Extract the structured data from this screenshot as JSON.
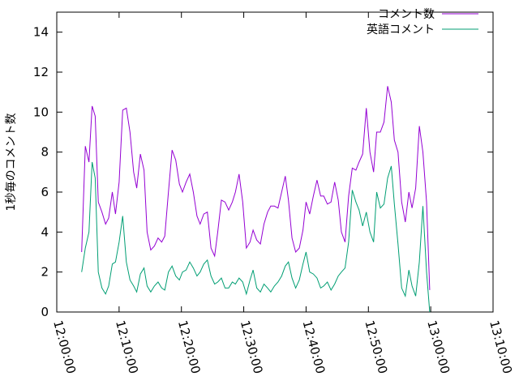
{
  "chart_data": {
    "type": "line",
    "title": "",
    "xlabel": "",
    "ylabel": "1秒毎のコメント数",
    "ylim": [
      0,
      15
    ],
    "yticks": [
      0,
      2,
      4,
      6,
      8,
      10,
      12,
      14
    ],
    "xlim": [
      "12:00:00",
      "13:10:00"
    ],
    "xticks": [
      "12:00:00",
      "12:10:00",
      "12:20:00",
      "12:30:00",
      "12:40:00",
      "12:50:00",
      "13:00:00",
      "13:10:00"
    ],
    "grid": false,
    "legend_position": "top-right",
    "series": [
      {
        "name": "コメント数",
        "color": "#9400d3",
        "points": [
          [
            "12:04:00",
            3.0
          ],
          [
            "12:04:35",
            8.3
          ],
          [
            "12:05:10",
            7.5
          ],
          [
            "12:05:40",
            10.3
          ],
          [
            "12:06:10",
            9.8
          ],
          [
            "12:06:40",
            5.5
          ],
          [
            "12:07:15",
            5.0
          ],
          [
            "12:07:50",
            4.4
          ],
          [
            "12:08:20",
            4.7
          ],
          [
            "12:08:55",
            6.0
          ],
          [
            "12:09:25",
            4.9
          ],
          [
            "12:10:00",
            6.5
          ],
          [
            "12:10:35",
            10.1
          ],
          [
            "12:11:10",
            10.2
          ],
          [
            "12:11:45",
            9.0
          ],
          [
            "12:12:20",
            7.0
          ],
          [
            "12:12:50",
            6.2
          ],
          [
            "12:13:25",
            7.9
          ],
          [
            "12:14:00",
            7.1
          ],
          [
            "12:14:30",
            4.0
          ],
          [
            "12:15:05",
            3.1
          ],
          [
            "12:15:40",
            3.3
          ],
          [
            "12:16:15",
            3.7
          ],
          [
            "12:16:50",
            3.5
          ],
          [
            "12:17:20",
            3.8
          ],
          [
            "12:17:55",
            6.0
          ],
          [
            "12:18:30",
            8.1
          ],
          [
            "12:19:05",
            7.6
          ],
          [
            "12:19:40",
            6.4
          ],
          [
            "12:20:10",
            6.0
          ],
          [
            "12:20:45",
            6.5
          ],
          [
            "12:21:20",
            6.9
          ],
          [
            "12:21:55",
            6.0
          ],
          [
            "12:22:30",
            4.8
          ],
          [
            "12:23:00",
            4.4
          ],
          [
            "12:23:35",
            4.9
          ],
          [
            "12:24:10",
            5.0
          ],
          [
            "12:24:45",
            3.2
          ],
          [
            "12:25:20",
            2.8
          ],
          [
            "12:25:50",
            4.0
          ],
          [
            "12:26:25",
            5.6
          ],
          [
            "12:27:00",
            5.5
          ],
          [
            "12:27:35",
            5.1
          ],
          [
            "12:28:10",
            5.5
          ],
          [
            "12:28:40",
            6.0
          ],
          [
            "12:29:15",
            6.9
          ],
          [
            "12:29:50",
            5.5
          ],
          [
            "12:30:25",
            3.2
          ],
          [
            "12:31:00",
            3.5
          ],
          [
            "12:31:30",
            4.1
          ],
          [
            "12:32:05",
            3.6
          ],
          [
            "12:32:40",
            3.4
          ],
          [
            "12:33:15",
            4.4
          ],
          [
            "12:33:50",
            5.0
          ],
          [
            "12:34:20",
            5.3
          ],
          [
            "12:34:55",
            5.3
          ],
          [
            "12:35:30",
            5.2
          ],
          [
            "12:36:05",
            6.0
          ],
          [
            "12:36:40",
            6.8
          ],
          [
            "12:37:10",
            5.6
          ],
          [
            "12:37:45",
            3.7
          ],
          [
            "12:38:20",
            3.0
          ],
          [
            "12:38:55",
            3.2
          ],
          [
            "12:39:30",
            4.1
          ],
          [
            "12:40:00",
            5.5
          ],
          [
            "12:40:35",
            4.9
          ],
          [
            "12:41:10",
            5.8
          ],
          [
            "12:41:45",
            6.6
          ],
          [
            "12:42:20",
            5.8
          ],
          [
            "12:42:50",
            5.8
          ],
          [
            "12:43:25",
            5.4
          ],
          [
            "12:44:00",
            5.5
          ],
          [
            "12:44:35",
            6.5
          ],
          [
            "12:45:10",
            5.6
          ],
          [
            "12:45:40",
            4.0
          ],
          [
            "12:46:15",
            3.5
          ],
          [
            "12:46:50",
            5.8
          ],
          [
            "12:47:25",
            7.2
          ],
          [
            "12:48:00",
            7.1
          ],
          [
            "12:48:30",
            7.5
          ],
          [
            "12:49:05",
            7.9
          ],
          [
            "12:49:40",
            10.2
          ],
          [
            "12:50:15",
            8.0
          ],
          [
            "12:50:50",
            7.0
          ],
          [
            "12:51:20",
            9.0
          ],
          [
            "12:51:55",
            9.0
          ],
          [
            "12:52:30",
            9.5
          ],
          [
            "12:53:05",
            11.3
          ],
          [
            "12:53:40",
            10.5
          ],
          [
            "12:54:10",
            8.6
          ],
          [
            "12:54:45",
            8.0
          ],
          [
            "12:55:20",
            5.5
          ],
          [
            "12:55:55",
            4.5
          ],
          [
            "12:56:30",
            6.0
          ],
          [
            "12:57:00",
            5.2
          ],
          [
            "12:57:35",
            6.2
          ],
          [
            "12:58:10",
            9.3
          ],
          [
            "12:58:45",
            8.0
          ],
          [
            "12:59:20",
            5.5
          ],
          [
            "12:59:50",
            1.1
          ]
        ]
      },
      {
        "name": "英語コメント",
        "color": "#009e73",
        "points": [
          [
            "12:04:00",
            2.0
          ],
          [
            "12:04:35",
            3.2
          ],
          [
            "12:05:10",
            4.0
          ],
          [
            "12:05:40",
            7.5
          ],
          [
            "12:06:10",
            6.7
          ],
          [
            "12:06:40",
            2.0
          ],
          [
            "12:07:15",
            1.2
          ],
          [
            "12:07:50",
            0.9
          ],
          [
            "12:08:20",
            1.3
          ],
          [
            "12:08:55",
            2.4
          ],
          [
            "12:09:25",
            2.5
          ],
          [
            "12:10:00",
            3.5
          ],
          [
            "12:10:35",
            4.8
          ],
          [
            "12:11:10",
            2.5
          ],
          [
            "12:11:45",
            1.6
          ],
          [
            "12:12:20",
            1.3
          ],
          [
            "12:12:50",
            1.0
          ],
          [
            "12:13:25",
            1.9
          ],
          [
            "12:14:00",
            2.2
          ],
          [
            "12:14:30",
            1.3
          ],
          [
            "12:15:05",
            1.0
          ],
          [
            "12:15:40",
            1.3
          ],
          [
            "12:16:15",
            1.5
          ],
          [
            "12:16:50",
            1.2
          ],
          [
            "12:17:20",
            1.1
          ],
          [
            "12:17:55",
            2.0
          ],
          [
            "12:18:30",
            2.3
          ],
          [
            "12:19:05",
            1.8
          ],
          [
            "12:19:40",
            1.6
          ],
          [
            "12:20:10",
            2.0
          ],
          [
            "12:20:45",
            2.1
          ],
          [
            "12:21:20",
            2.5
          ],
          [
            "12:21:55",
            2.2
          ],
          [
            "12:22:30",
            1.8
          ],
          [
            "12:23:00",
            2.0
          ],
          [
            "12:23:35",
            2.4
          ],
          [
            "12:24:10",
            2.6
          ],
          [
            "12:24:45",
            1.8
          ],
          [
            "12:25:20",
            1.4
          ],
          [
            "12:25:50",
            1.5
          ],
          [
            "12:26:25",
            1.7
          ],
          [
            "12:27:00",
            1.2
          ],
          [
            "12:27:35",
            1.2
          ],
          [
            "12:28:10",
            1.5
          ],
          [
            "12:28:40",
            1.4
          ],
          [
            "12:29:15",
            1.7
          ],
          [
            "12:29:50",
            1.5
          ],
          [
            "12:30:25",
            0.9
          ],
          [
            "12:31:00",
            1.6
          ],
          [
            "12:31:30",
            2.1
          ],
          [
            "12:32:05",
            1.2
          ],
          [
            "12:32:40",
            1.0
          ],
          [
            "12:33:15",
            1.4
          ],
          [
            "12:33:50",
            1.2
          ],
          [
            "12:34:20",
            1.0
          ],
          [
            "12:34:55",
            1.3
          ],
          [
            "12:35:30",
            1.5
          ],
          [
            "12:36:05",
            1.8
          ],
          [
            "12:36:40",
            2.3
          ],
          [
            "12:37:10",
            2.5
          ],
          [
            "12:37:45",
            1.7
          ],
          [
            "12:38:20",
            1.2
          ],
          [
            "12:38:55",
            1.6
          ],
          [
            "12:39:30",
            2.4
          ],
          [
            "12:40:00",
            3.0
          ],
          [
            "12:40:35",
            2.0
          ],
          [
            "12:41:10",
            1.9
          ],
          [
            "12:41:45",
            1.7
          ],
          [
            "12:42:20",
            1.2
          ],
          [
            "12:42:50",
            1.3
          ],
          [
            "12:43:25",
            1.5
          ],
          [
            "12:44:00",
            1.1
          ],
          [
            "12:44:35",
            1.4
          ],
          [
            "12:45:10",
            1.8
          ],
          [
            "12:45:40",
            2.0
          ],
          [
            "12:46:15",
            2.2
          ],
          [
            "12:46:50",
            3.5
          ],
          [
            "12:47:25",
            6.1
          ],
          [
            "12:48:00",
            5.5
          ],
          [
            "12:48:30",
            5.1
          ],
          [
            "12:49:05",
            4.3
          ],
          [
            "12:49:40",
            5.0
          ],
          [
            "12:50:15",
            4.0
          ],
          [
            "12:50:50",
            3.5
          ],
          [
            "12:51:20",
            6.0
          ],
          [
            "12:51:55",
            5.2
          ],
          [
            "12:52:30",
            5.4
          ],
          [
            "12:53:05",
            6.7
          ],
          [
            "12:53:40",
            7.3
          ],
          [
            "12:54:10",
            5.4
          ],
          [
            "12:54:45",
            3.4
          ],
          [
            "12:55:20",
            1.2
          ],
          [
            "12:55:55",
            0.8
          ],
          [
            "12:56:30",
            2.1
          ],
          [
            "12:57:00",
            1.3
          ],
          [
            "12:57:35",
            0.8
          ],
          [
            "12:58:10",
            2.5
          ],
          [
            "12:58:45",
            5.3
          ],
          [
            "12:59:20",
            2.0
          ],
          [
            "12:59:50",
            0.0
          ]
        ]
      }
    ]
  }
}
